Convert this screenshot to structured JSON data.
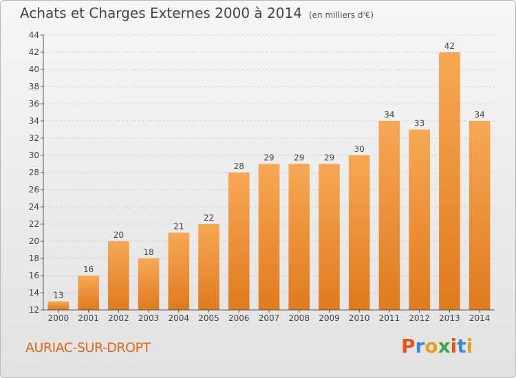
{
  "chart_data": {
    "type": "bar",
    "title": "Achats et Charges Externes 2000 à 2014",
    "subtitle": "(en milliers d'€)",
    "categories": [
      "2000",
      "2001",
      "2002",
      "2003",
      "2004",
      "2005",
      "2006",
      "2007",
      "2008",
      "2009",
      "2010",
      "2011",
      "2012",
      "2013",
      "2014"
    ],
    "values": [
      13,
      16,
      20,
      18,
      21,
      22,
      28,
      29,
      29,
      29,
      30,
      34,
      33,
      42,
      34
    ],
    "ylim": [
      12,
      44
    ],
    "yticks": [
      12,
      14,
      16,
      18,
      20,
      22,
      24,
      26,
      28,
      30,
      32,
      34,
      36,
      38,
      40,
      42,
      44
    ],
    "grid": true,
    "bar_color_top": "#f7a855",
    "bar_color_bottom": "#e07a1e"
  },
  "footer": {
    "commune": "AURIAC-SUR-DROPT",
    "logo_letters": [
      "P",
      "r",
      "o",
      "x",
      "i",
      "t",
      "i"
    ],
    "logo_colors": [
      "#e8541a",
      "#3a8ad8",
      "#e8a020",
      "#40a848",
      "#e8541a",
      "#3a8ad8",
      "#e8a020"
    ]
  }
}
